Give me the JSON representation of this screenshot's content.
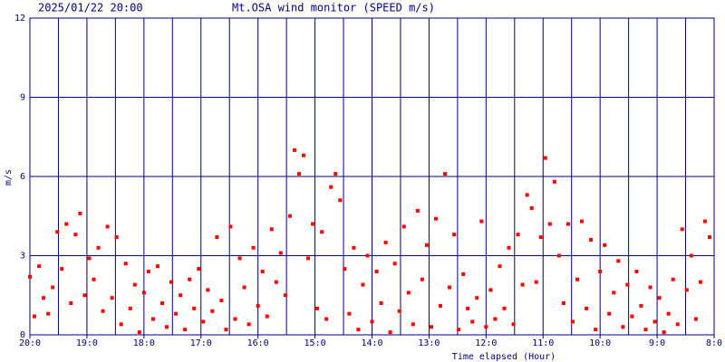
{
  "chart_data": {
    "type": "scatter",
    "timestamp": "2025/01/22 20:00",
    "title": "Mt.OSA wind monitor (SPEED m/s)",
    "ylabel": "m/s",
    "xlabel": "Time elapsed (Hour)",
    "color": "#ff0000",
    "grid_color": "#000080",
    "grid": true,
    "ylim": [
      0,
      12
    ],
    "yticks": [
      0,
      3,
      6,
      9,
      12
    ],
    "xlim": [
      0,
      12
    ],
    "xticks": [
      {
        "value": 0,
        "label": "20:0"
      },
      {
        "value": 1,
        "label": "19:0"
      },
      {
        "value": 2,
        "label": "18:0"
      },
      {
        "value": 3,
        "label": "17:0"
      },
      {
        "value": 4,
        "label": "16:0"
      },
      {
        "value": 5,
        "label": "15:0"
      },
      {
        "value": 6,
        "label": "14:0"
      },
      {
        "value": 7,
        "label": "13:0"
      },
      {
        "value": 8,
        "label": "12:0"
      },
      {
        "value": 9,
        "label": "11:0"
      },
      {
        "value": 10,
        "label": "10:0"
      },
      {
        "value": 11,
        "label": "9:0"
      },
      {
        "value": 12,
        "label": "8:0"
      }
    ],
    "xgrid": [
      0,
      0.5,
      1,
      1.5,
      2,
      2.5,
      3,
      3.5,
      4,
      4.5,
      5,
      5.5,
      6,
      6.5,
      7,
      7.5,
      8,
      8.5,
      9,
      9.5,
      10,
      10.5,
      11,
      11.5,
      12
    ],
    "x": [
      0,
      0.08,
      0.16,
      0.24,
      0.32,
      0.4,
      0.48,
      0.56,
      0.64,
      0.72,
      0.8,
      0.88,
      0.96,
      1.04,
      1.12,
      1.2,
      1.28,
      1.36,
      1.44,
      1.52,
      1.6,
      1.68,
      1.76,
      1.84,
      1.92,
      2,
      2.08,
      2.16,
      2.24,
      2.32,
      2.4,
      2.48,
      2.56,
      2.64,
      2.72,
      2.8,
      2.88,
      2.96,
      3.04,
      3.12,
      3.2,
      3.28,
      3.36,
      3.44,
      3.52,
      3.6,
      3.68,
      3.76,
      3.84,
      3.92,
      4,
      4.08,
      4.16,
      4.24,
      4.32,
      4.4,
      4.48,
      4.56,
      4.64,
      4.72,
      4.8,
      4.88,
      4.96,
      5.04,
      5.12,
      5.2,
      5.28,
      5.36,
      5.44,
      5.52,
      5.6,
      5.68,
      5.76,
      5.84,
      5.92,
      6,
      6.08,
      6.16,
      6.24,
      6.32,
      6.4,
      6.48,
      6.56,
      6.64,
      6.72,
      6.8,
      6.88,
      6.96,
      7.04,
      7.12,
      7.2,
      7.28,
      7.36,
      7.44,
      7.52,
      7.6,
      7.68,
      7.76,
      7.84,
      7.92,
      8,
      8.08,
      8.16,
      8.24,
      8.32,
      8.4,
      8.48,
      8.56,
      8.64,
      8.72,
      8.8,
      8.88,
      8.96,
      9.04,
      9.12,
      9.2,
      9.28,
      9.36,
      9.44,
      9.52,
      9.6,
      9.68,
      9.76,
      9.84,
      9.92,
      10,
      10.08,
      10.16,
      10.24,
      10.32,
      10.4,
      10.48,
      10.56,
      10.64,
      10.72,
      10.8,
      10.88,
      10.96,
      11.04,
      11.12,
      11.2,
      11.28,
      11.36,
      11.44,
      11.52,
      11.6,
      11.68,
      11.76,
      11.84,
      11.92
    ],
    "values": [
      2.2,
      0.7,
      2.6,
      1.4,
      0.8,
      1.8,
      3.9,
      2.5,
      4.2,
      1.2,
      3.8,
      4.6,
      1.5,
      2.9,
      2.1,
      3.3,
      0.9,
      4.1,
      1.4,
      3.7,
      0.4,
      2.7,
      1.0,
      1.9,
      0.1,
      1.6,
      2.4,
      0.6,
      2.6,
      1.2,
      0.3,
      2.0,
      0.8,
      1.5,
      0.2,
      2.1,
      1.0,
      2.5,
      0.5,
      1.7,
      0.9,
      3.7,
      1.3,
      0.2,
      4.1,
      0.6,
      2.9,
      1.8,
      0.4,
      3.3,
      1.1,
      2.4,
      0.7,
      4.0,
      2.0,
      3.1,
      1.5,
      4.5,
      7.0,
      6.1,
      6.8,
      2.9,
      4.2,
      1.0,
      3.9,
      0.6,
      5.6,
      6.1,
      5.1,
      2.5,
      0.8,
      3.3,
      0.2,
      1.9,
      3.0,
      0.5,
      2.4,
      1.2,
      3.5,
      0.1,
      2.7,
      0.9,
      4.1,
      1.6,
      0.4,
      4.7,
      2.1,
      3.4,
      0.3,
      4.4,
      1.1,
      6.1,
      1.8,
      3.8,
      0.2,
      2.3,
      1.0,
      0.5,
      1.4,
      4.3,
      0.3,
      1.7,
      0.6,
      2.6,
      1.0,
      3.3,
      0.4,
      3.8,
      1.9,
      5.3,
      4.8,
      2.0,
      3.7,
      6.7,
      4.2,
      5.8,
      3.0,
      1.2,
      4.2,
      0.5,
      2.1,
      4.3,
      1.0,
      3.6,
      0.2,
      2.4,
      3.4,
      0.8,
      1.6,
      2.8,
      0.3,
      1.9,
      0.7,
      2.4,
      1.1,
      0.2,
      1.8,
      0.5,
      1.4,
      0.1,
      0.8,
      2.1,
      0.4,
      4.0,
      1.7,
      3.0,
      0.6,
      2.0,
      4.3,
      3.7
    ]
  }
}
